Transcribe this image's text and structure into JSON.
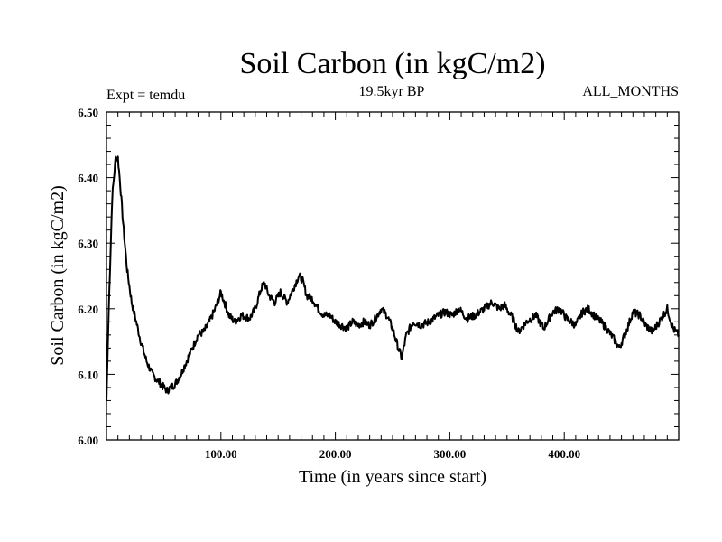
{
  "chart_data": {
    "type": "line",
    "title": "Soil Carbon (in kgC/m2)",
    "subtitle_left": "Expt = temdu",
    "subtitle_center": "19.5kyr BP",
    "subtitle_right": "ALL_MONTHS",
    "xlabel": "Time (in years since start)",
    "ylabel": "Soil Carbon (in kgC/m2)",
    "xlim": [
      0,
      500
    ],
    "ylim": [
      6.0,
      6.5
    ],
    "x_ticks": [
      100,
      200,
      300,
      400
    ],
    "x_tick_labels": [
      "100.00",
      "200.00",
      "300.00",
      "400.00"
    ],
    "y_ticks": [
      6.0,
      6.1,
      6.2,
      6.3,
      6.4,
      6.5
    ],
    "y_tick_labels": [
      "6.00",
      "6.10",
      "6.20",
      "6.30",
      "6.40",
      "6.50"
    ],
    "series": [
      {
        "name": "Soil Carbon",
        "x": [
          0,
          2,
          5,
          8,
          10,
          12,
          15,
          18,
          22,
          26,
          30,
          35,
          40,
          45,
          50,
          53,
          56,
          60,
          65,
          70,
          75,
          80,
          85,
          90,
          95,
          100,
          103,
          107,
          112,
          118,
          125,
          130,
          135,
          138,
          142,
          147,
          152,
          158,
          163,
          168,
          171,
          175,
          180,
          185,
          190,
          195,
          200,
          205,
          210,
          215,
          220,
          225,
          230,
          235,
          240,
          245,
          250,
          255,
          258,
          262,
          268,
          275,
          282,
          290,
          296,
          302,
          308,
          315,
          322,
          330,
          337,
          343,
          348,
          355,
          360,
          367,
          375,
          382,
          390,
          396,
          402,
          410,
          416,
          421,
          426,
          432,
          437,
          443,
          448,
          454,
          460,
          466,
          471,
          477,
          483,
          490,
          495,
          500
        ],
        "values": [
          6.06,
          6.2,
          6.37,
          6.43,
          6.43,
          6.39,
          6.32,
          6.26,
          6.21,
          6.18,
          6.15,
          6.12,
          6.1,
          6.09,
          6.08,
          6.075,
          6.08,
          6.085,
          6.1,
          6.12,
          6.14,
          6.16,
          6.165,
          6.18,
          6.2,
          6.225,
          6.21,
          6.19,
          6.18,
          6.19,
          6.185,
          6.2,
          6.23,
          6.24,
          6.22,
          6.21,
          6.225,
          6.21,
          6.23,
          6.25,
          6.245,
          6.22,
          6.215,
          6.2,
          6.19,
          6.19,
          6.18,
          6.175,
          6.17,
          6.18,
          6.175,
          6.18,
          6.175,
          6.185,
          6.2,
          6.19,
          6.17,
          6.14,
          6.125,
          6.16,
          6.18,
          6.175,
          6.18,
          6.19,
          6.195,
          6.19,
          6.2,
          6.185,
          6.19,
          6.2,
          6.21,
          6.2,
          6.205,
          6.185,
          6.165,
          6.18,
          6.19,
          6.17,
          6.195,
          6.2,
          6.185,
          6.175,
          6.195,
          6.2,
          6.19,
          6.18,
          6.17,
          6.155,
          6.14,
          6.165,
          6.195,
          6.19,
          6.175,
          6.165,
          6.18,
          6.2,
          6.17,
          6.16
        ]
      }
    ]
  }
}
